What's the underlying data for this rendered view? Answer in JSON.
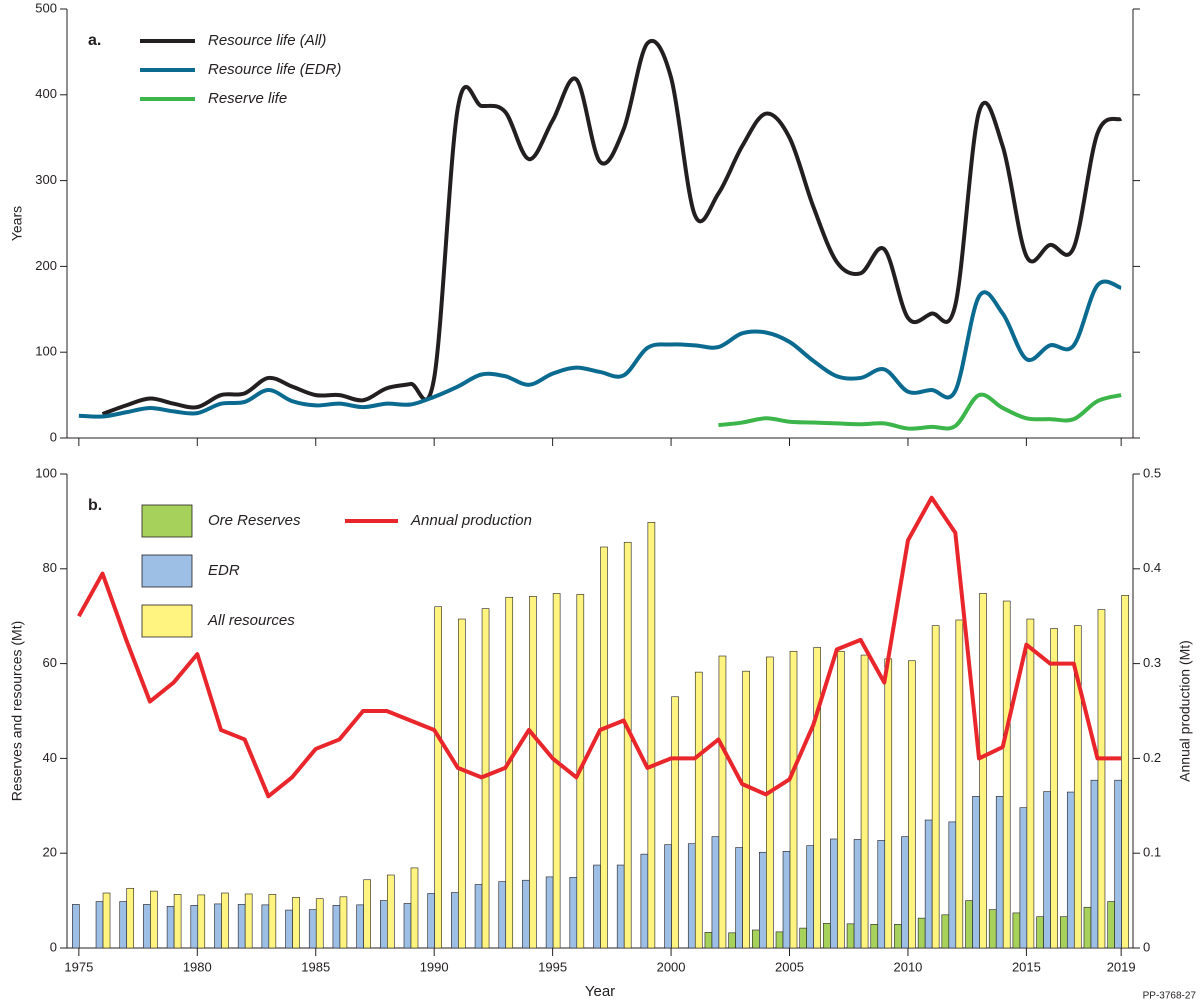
{
  "figure_id": "PP-3768-27",
  "chart_data": [
    {
      "type": "line",
      "panel_label": "a.",
      "y_label": "Years",
      "x": [
        1975,
        1976,
        1977,
        1978,
        1979,
        1980,
        1981,
        1982,
        1983,
        1984,
        1985,
        1986,
        1987,
        1988,
        1989,
        1990,
        1991,
        1992,
        1993,
        1994,
        1995,
        1996,
        1997,
        1998,
        1999,
        2000,
        2001,
        2002,
        2003,
        2004,
        2005,
        2006,
        2007,
        2008,
        2009,
        2010,
        2011,
        2012,
        2013,
        2014,
        2015,
        2016,
        2017,
        2018,
        2019
      ],
      "xlim": [
        1974.5,
        2019.5
      ],
      "xticks": [
        1975,
        1980,
        1985,
        1990,
        1995,
        2000,
        2005,
        2010,
        2015,
        2019
      ],
      "xtick_labels": false,
      "ylim": [
        0,
        500
      ],
      "yticks": [
        0,
        100,
        200,
        300,
        400,
        500
      ],
      "series": [
        {
          "name": "Resource life (All)",
          "color": "#231f20",
          "values": [
            null,
            28,
            38,
            46,
            40,
            36,
            50,
            52,
            70,
            60,
            50,
            50,
            44,
            58,
            63,
            70,
            385,
            387,
            380,
            325,
            370,
            418,
            322,
            360,
            460,
            420,
            260,
            285,
            340,
            378,
            350,
            270,
            205,
            192,
            220,
            140,
            145,
            155,
            380,
            340,
            212,
            225,
            222,
            355,
            372
          ]
        },
        {
          "name": "Resource life (EDR)",
          "color": "#0b6a8f",
          "values": [
            26,
            25,
            30,
            35,
            31,
            29,
            40,
            42,
            56,
            43,
            38,
            40,
            36,
            40,
            39,
            48,
            60,
            74,
            72,
            62,
            75,
            82,
            77,
            73,
            105,
            109,
            108,
            106,
            122,
            123,
            112,
            90,
            72,
            70,
            80,
            54,
            56,
            55,
            165,
            145,
            92,
            108,
            108,
            178,
            175
          ]
        },
        {
          "name": "Reserve life",
          "color": "#3cb54a",
          "values": [
            null,
            null,
            null,
            null,
            null,
            null,
            null,
            null,
            null,
            null,
            null,
            null,
            null,
            null,
            null,
            null,
            null,
            null,
            null,
            null,
            null,
            null,
            null,
            null,
            null,
            null,
            null,
            15,
            18,
            23,
            19,
            18,
            17,
            16,
            17,
            11,
            13,
            14,
            50,
            35,
            23,
            22,
            22,
            43,
            50
          ]
        }
      ]
    },
    {
      "type": "bar",
      "panel_label": "b.",
      "x_label": "Year",
      "y_label": "Reserves and resources (Mt)",
      "y2_label": "Annual production (Mt)",
      "x": [
        1975,
        1976,
        1977,
        1978,
        1979,
        1980,
        1981,
        1982,
        1983,
        1984,
        1985,
        1986,
        1987,
        1988,
        1989,
        1990,
        1991,
        1992,
        1993,
        1994,
        1995,
        1996,
        1997,
        1998,
        1999,
        2000,
        2001,
        2002,
        2003,
        2004,
        2005,
        2006,
        2007,
        2008,
        2009,
        2010,
        2011,
        2012,
        2013,
        2014,
        2015,
        2016,
        2017,
        2018,
        2019
      ],
      "xlim": [
        1974.5,
        2019.5
      ],
      "xticks": [
        1975,
        1980,
        1985,
        1990,
        1995,
        2000,
        2005,
        2010,
        2015,
        2019
      ],
      "ylim": [
        0,
        100
      ],
      "yticks": [
        0,
        20,
        40,
        60,
        80,
        100
      ],
      "y2lim": [
        0,
        0.5
      ],
      "y2ticks": [
        0,
        0.1,
        0.2,
        0.3,
        0.4,
        0.5
      ],
      "series": [
        {
          "name": "Ore Reserves",
          "color": "#a6d25c",
          "values": [
            null,
            null,
            null,
            null,
            null,
            null,
            null,
            null,
            null,
            null,
            null,
            null,
            null,
            null,
            null,
            null,
            null,
            null,
            null,
            null,
            null,
            null,
            null,
            null,
            null,
            null,
            null,
            3.3,
            3.2,
            3.8,
            3.4,
            4.2,
            5.2,
            5.1,
            5,
            5,
            6.3,
            7,
            10,
            8.1,
            7.4,
            6.6,
            6.6,
            8.6,
            9.8
          ]
        },
        {
          "name": "EDR",
          "color": "#9dbfe6",
          "values": [
            9.2,
            9.8,
            9.8,
            9.2,
            8.8,
            9,
            9.3,
            9.2,
            9.1,
            8,
            8.1,
            9,
            9.1,
            10,
            9.4,
            11.5,
            11.7,
            13.4,
            14,
            14.3,
            15,
            14.9,
            17.5,
            17.5,
            19.8,
            21.8,
            22,
            23.5,
            21.2,
            20.2,
            20.4,
            21.6,
            23,
            22.9,
            22.7,
            23.5,
            27,
            26.6,
            32,
            32,
            29.6,
            33,
            32.9,
            35.4,
            35.4
          ]
        },
        {
          "name": "All resources",
          "color": "#fff47f",
          "values": [
            null,
            11.6,
            12.6,
            12,
            11.3,
            11.2,
            11.6,
            11.4,
            11.3,
            10.7,
            10.4,
            10.8,
            14.4,
            15.4,
            16.9,
            72,
            69.4,
            71.6,
            74,
            74.2,
            74.8,
            74.6,
            84.6,
            85.6,
            89.8,
            53,
            58.2,
            61.6,
            58.4,
            61.4,
            62.6,
            63.4,
            62.6,
            61.8,
            61,
            60.6,
            68,
            69.2,
            74.8,
            73.2,
            69.4,
            67.4,
            68,
            71.4,
            74.4
          ]
        },
        {
          "name": "Annual production",
          "type": "line",
          "axis": "y2",
          "color": "#e8262b",
          "values": [
            0.35,
            0.395,
            0.325,
            0.26,
            0.28,
            0.31,
            0.23,
            0.22,
            0.16,
            0.18,
            0.21,
            0.22,
            0.25,
            0.25,
            0.24,
            0.23,
            0.19,
            0.18,
            0.19,
            0.23,
            0.2,
            0.18,
            0.23,
            0.24,
            0.19,
            0.2,
            0.2,
            0.22,
            0.173,
            0.162,
            0.178,
            0.235,
            0.315,
            0.325,
            0.28,
            0.43,
            0.475,
            0.438,
            0.2,
            0.212,
            0.32,
            0.3,
            0.3,
            0.2,
            0.2
          ]
        }
      ]
    }
  ]
}
